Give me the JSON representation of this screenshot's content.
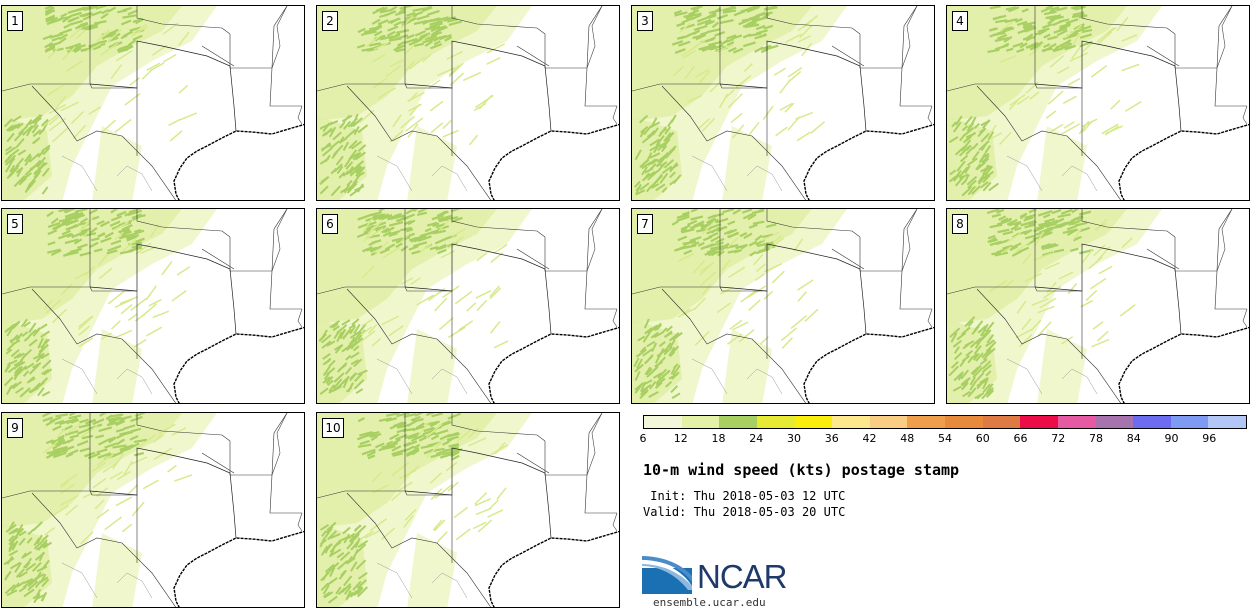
{
  "panels": [
    {
      "label": "1"
    },
    {
      "label": "2"
    },
    {
      "label": "3"
    },
    {
      "label": "4"
    },
    {
      "label": "5"
    },
    {
      "label": "6"
    },
    {
      "label": "7"
    },
    {
      "label": "8"
    },
    {
      "label": "9"
    },
    {
      "label": "10"
    }
  ],
  "colorbar": {
    "colors": [
      "#f2f7d9",
      "#e3f2a6",
      "#a8cf62",
      "#e6ea33",
      "#fcee0c",
      "#fde88e",
      "#f9cd84",
      "#ef9f4c",
      "#e88a3c",
      "#de7a44",
      "#ec0c48",
      "#e65aa3",
      "#a673ae",
      "#6b6cf0",
      "#7f9af2",
      "#b2c7f6"
    ],
    "ticks": [
      "6",
      "12",
      "18",
      "24",
      "30",
      "36",
      "42",
      "48",
      "54",
      "60",
      "66",
      "72",
      "78",
      "84",
      "90",
      "96"
    ]
  },
  "title": "10-m wind speed (kts) postage stamp",
  "init": " Init: Thu 2018-05-03 12 UTC",
  "valid": "Valid: Thu 2018-05-03 20 UTC",
  "logo": {
    "name": "NCAR",
    "url": "ensemble.ucar.edu"
  }
}
